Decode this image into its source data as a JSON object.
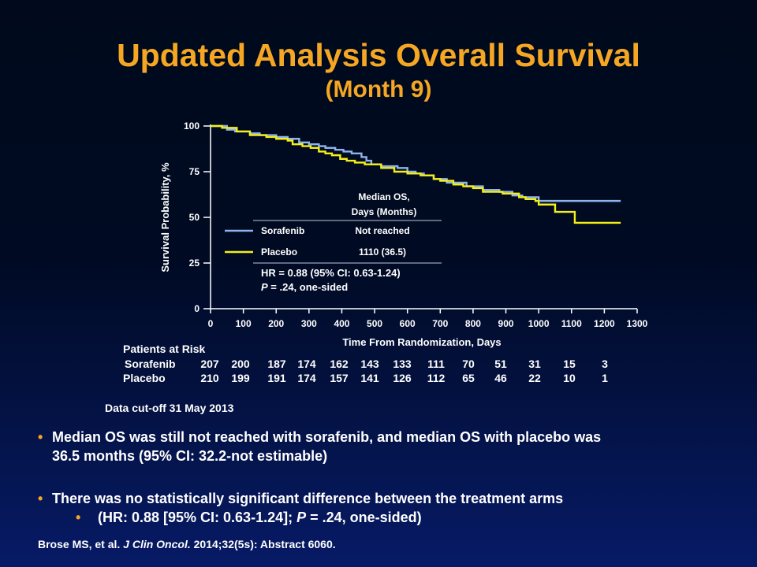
{
  "title": "Updated Analysis Overall Survival",
  "subtitle": "(Month 9)",
  "chart_data": {
    "type": "line",
    "subtype": "kaplan-meier",
    "xlabel": "Time From Randomization, Days",
    "ylabel": "Survival Probability, %",
    "xlim": [
      0,
      1300
    ],
    "ylim": [
      0,
      100
    ],
    "xticks": [
      0,
      100,
      200,
      300,
      400,
      500,
      600,
      700,
      800,
      900,
      1000,
      1100,
      1200,
      1300
    ],
    "yticks": [
      0,
      25,
      50,
      75,
      100
    ],
    "grid": false,
    "series": [
      {
        "name": "Sorafenib",
        "color": "#8fb4ec",
        "x": [
          0,
          40,
          50,
          75,
          120,
          150,
          200,
          235,
          270,
          300,
          330,
          350,
          380,
          405,
          430,
          460,
          475,
          490,
          520,
          570,
          600,
          625,
          650,
          680,
          720,
          780,
          830,
          880,
          920,
          950,
          1000,
          1250
        ],
        "y": [
          100,
          100,
          98,
          97,
          96,
          95,
          94,
          93,
          91,
          90,
          89,
          88,
          87,
          86,
          85,
          83,
          81,
          79,
          78,
          77,
          75,
          74,
          73,
          71,
          69,
          67,
          65,
          64,
          62,
          61,
          59,
          59
        ]
      },
      {
        "name": "Placebo",
        "color": "#f4ef19",
        "x": [
          0,
          35,
          80,
          120,
          170,
          200,
          235,
          250,
          280,
          305,
          330,
          350,
          370,
          395,
          415,
          440,
          470,
          520,
          560,
          600,
          640,
          680,
          700,
          740,
          770,
          800,
          830,
          890,
          940,
          960,
          990,
          1000,
          1050,
          1080,
          1100,
          1110,
          1150,
          1250
        ],
        "y": [
          100,
          99,
          97,
          95,
          94,
          93,
          92,
          90,
          89,
          88,
          86,
          85,
          84,
          82,
          81,
          80,
          79,
          77,
          75,
          74,
          73,
          71,
          70,
          68,
          67,
          66,
          64,
          63,
          61,
          60,
          59,
          57,
          53,
          53,
          53,
          47,
          47,
          47
        ]
      }
    ],
    "annotation": {
      "header": [
        "Median OS,",
        "Days (Months)"
      ],
      "rows": [
        {
          "arm": "Sorafenib",
          "value": "Not reached"
        },
        {
          "arm": "Placebo",
          "value": "1110 (36.5)"
        }
      ],
      "hr_line": "HR = 0.88 (95% CI: 0.63-1.24)",
      "p_italic": "P",
      "p_rest": " = .24, one-sided"
    }
  },
  "risk_table": {
    "heading": "Patients at Risk",
    "rows": [
      {
        "label": "Sorafenib",
        "values": [
          "207",
          "200",
          "187",
          "174",
          "162",
          "143",
          "133",
          "111",
          "70",
          "51",
          "31",
          "15",
          "3"
        ]
      },
      {
        "label": "Placebo",
        "values": [
          "210",
          "199",
          "191",
          "174",
          "157",
          "141",
          "126",
          "112",
          "65",
          "46",
          "22",
          "10",
          "1"
        ]
      }
    ]
  },
  "cutoff": "Data cut-off 31 May 2013",
  "bullets": {
    "b1_line1": "Median OS was still not reached with sorafenib, and median OS with placebo was",
    "b1_line2": "36.5 months (95% CI: 32.2-not estimable)",
    "b2": "There was no statistically  significant  difference between the treatment arms",
    "b2_sub_a": "(HR:  0.88 [95%  CI:  0.63-1.24]; ",
    "b2_sub_p": "P",
    "b2_sub_b": " = .24, one-sided)",
    "dot": "•"
  },
  "reference": {
    "authors": "Brose MS, et al. ",
    "journal": "J Clin Oncol.",
    "rest": " 2014;32(5s): Abstract 6060."
  }
}
